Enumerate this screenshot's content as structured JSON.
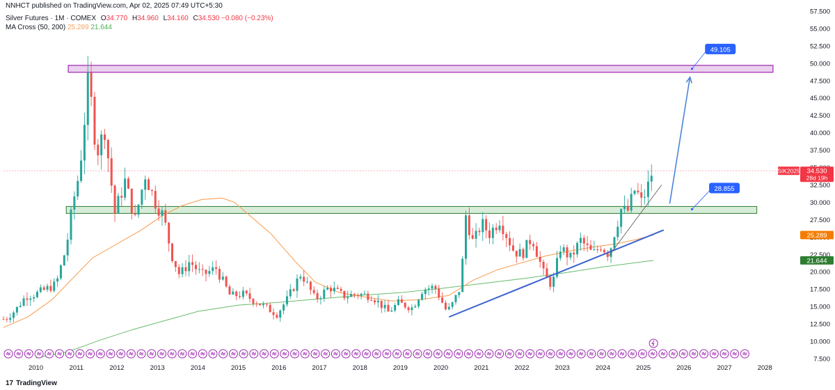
{
  "header": {
    "published": "NNHCT published on TradingView.com, Apr 02, 2025 07:49 UTC+5:30",
    "symbol": "Silver Futures · 1M · COMEX",
    "ohlc": {
      "o_label": "O",
      "o": "34.770",
      "h_label": "H",
      "h": "34.960",
      "l_label": "L",
      "l": "34.160",
      "c_label": "C",
      "c": "34.530",
      "change": "−0.080 (−0.23%)"
    },
    "ma_label": "MA Cross (50, 200)",
    "ma50_value": "25.289",
    "ma200_value": "21.644"
  },
  "footer": {
    "logo_mark": "17",
    "logo_text": "TradingView"
  },
  "chart_data": {
    "type": "candlestick",
    "title": "",
    "x_ticks": [
      "2010",
      "2011",
      "2012",
      "2013",
      "2014",
      "2015",
      "2016",
      "2017",
      "2018",
      "2019",
      "2020",
      "2021",
      "2022",
      "2023",
      "2024",
      "2025",
      "2026",
      "2027",
      "2028"
    ],
    "y_ticks": [
      "7.500",
      "10.000",
      "12.500",
      "15.000",
      "17.500",
      "20.000",
      "22.500",
      "25.000",
      "27.500",
      "30.000",
      "32.500",
      "35.000",
      "37.500",
      "40.000",
      "42.500",
      "45.000",
      "47.500",
      "50.000",
      "52.500",
      "55.000",
      "57.500"
    ],
    "ylim": [
      7.5,
      58.6
    ],
    "xlim": [
      2009.2,
      2028.7
    ],
    "close_series": [
      [
        2009.25,
        13.2
      ],
      [
        2009.5,
        14.5
      ],
      [
        2009.75,
        16.5
      ],
      [
        2010.0,
        16.8
      ],
      [
        2010.25,
        17.5
      ],
      [
        2010.5,
        18.2
      ],
      [
        2010.75,
        23.5
      ],
      [
        2010.92,
        30.0
      ],
      [
        2011.08,
        34.5
      ],
      [
        2011.3,
        48.0
      ],
      [
        2011.5,
        37.0
      ],
      [
        2011.7,
        40.5
      ],
      [
        2011.95,
        28.5
      ],
      [
        2012.2,
        33.0
      ],
      [
        2012.45,
        27.5
      ],
      [
        2012.7,
        34.0
      ],
      [
        2012.95,
        30.0
      ],
      [
        2013.15,
        28.0
      ],
      [
        2013.35,
        22.5
      ],
      [
        2013.55,
        19.5
      ],
      [
        2013.8,
        21.5
      ],
      [
        2014.1,
        19.5
      ],
      [
        2014.45,
        20.5
      ],
      [
        2014.8,
        16.5
      ],
      [
        2015.1,
        16.8
      ],
      [
        2015.5,
        15.5
      ],
      [
        2015.95,
        13.9
      ],
      [
        2016.2,
        16.0
      ],
      [
        2016.55,
        19.8
      ],
      [
        2016.9,
        16.0
      ],
      [
        2017.25,
        17.8
      ],
      [
        2017.6,
        16.5
      ],
      [
        2017.95,
        16.8
      ],
      [
        2018.3,
        16.5
      ],
      [
        2018.7,
        14.2
      ],
      [
        2018.95,
        15.5
      ],
      [
        2019.3,
        14.8
      ],
      [
        2019.55,
        17.5
      ],
      [
        2019.85,
        17.8
      ],
      [
        2020.15,
        14.2
      ],
      [
        2020.3,
        15.5
      ],
      [
        2020.5,
        18.0
      ],
      [
        2020.6,
        28.5
      ],
      [
        2020.8,
        24.0
      ],
      [
        2021.0,
        27.0
      ],
      [
        2021.2,
        25.5
      ],
      [
        2021.45,
        27.5
      ],
      [
        2021.8,
        23.0
      ],
      [
        2022.0,
        22.5
      ],
      [
        2022.25,
        25.0
      ],
      [
        2022.55,
        19.5
      ],
      [
        2022.75,
        18.0
      ],
      [
        2022.95,
        23.5
      ],
      [
        2023.2,
        22.0
      ],
      [
        2023.45,
        24.5
      ],
      [
        2023.75,
        22.5
      ],
      [
        2023.95,
        23.8
      ],
      [
        2024.15,
        22.5
      ],
      [
        2024.3,
        26.0
      ],
      [
        2024.45,
        29.0
      ],
      [
        2024.6,
        28.5
      ],
      [
        2024.8,
        32.0
      ],
      [
        2024.95,
        30.0
      ],
      [
        2025.1,
        32.0
      ],
      [
        2025.22,
        34.5
      ]
    ],
    "ma50_series": [
      [
        2009.2,
        12.0
      ],
      [
        2009.8,
        13.5
      ],
      [
        2010.4,
        16.0
      ],
      [
        2010.9,
        19.0
      ],
      [
        2011.4,
        22.0
      ],
      [
        2012.0,
        24.0
      ],
      [
        2012.6,
        26.0
      ],
      [
        2013.1,
        28.0
      ],
      [
        2013.6,
        29.5
      ],
      [
        2014.1,
        30.4
      ],
      [
        2014.6,
        30.6
      ],
      [
        2014.9,
        30.0
      ],
      [
        2015.3,
        28.0
      ],
      [
        2015.8,
        25.5
      ],
      [
        2016.4,
        21.5
      ],
      [
        2016.9,
        18.5
      ],
      [
        2017.5,
        17.0
      ],
      [
        2018.2,
        16.3
      ],
      [
        2018.8,
        15.8
      ],
      [
        2019.5,
        16.0
      ],
      [
        2020.2,
        16.6
      ],
      [
        2020.8,
        18.8
      ],
      [
        2021.4,
        20.3
      ],
      [
        2022.0,
        21.3
      ],
      [
        2022.6,
        22.3
      ],
      [
        2023.2,
        23.0
      ],
      [
        2023.8,
        23.6
      ],
      [
        2024.3,
        24.0
      ],
      [
        2024.8,
        24.6
      ],
      [
        2025.25,
        25.289
      ]
    ],
    "ma200_series": [
      [
        2010.0,
        7.6
      ],
      [
        2010.8,
        8.5
      ],
      [
        2011.6,
        10.2
      ],
      [
        2012.4,
        11.7
      ],
      [
        2013.2,
        13.0
      ],
      [
        2014.0,
        14.3
      ],
      [
        2015.0,
        15.2
      ],
      [
        2016.0,
        15.6
      ],
      [
        2017.0,
        16.1
      ],
      [
        2018.0,
        16.6
      ],
      [
        2019.0,
        17.0
      ],
      [
        2020.0,
        17.6
      ],
      [
        2021.0,
        18.3
      ],
      [
        2022.0,
        19.0
      ],
      [
        2023.0,
        19.8
      ],
      [
        2024.0,
        20.7
      ],
      [
        2025.25,
        21.644
      ]
    ],
    "resistance_zone": {
      "y_low": 48.7,
      "y_high": 49.7,
      "x_start": 2010.8,
      "x_end": 2028.2
    },
    "support_zone": {
      "y_low": 28.4,
      "y_high": 29.4,
      "x_start": 2010.75,
      "x_end": 2027.8
    },
    "trendline_main": {
      "x1": 2020.2,
      "y1": 13.5,
      "x2": 2025.5,
      "y2": 26.0
    },
    "trendline_short": {
      "x1": 2024.15,
      "y1": 22.3,
      "x2": 2025.45,
      "y2": 32.5
    },
    "projection_arrow": {
      "x1": 2025.65,
      "y1": 29.8,
      "x2": 2026.15,
      "y2": 48.0
    },
    "label_49105": {
      "text": "49.105",
      "x_data": 2026.2,
      "y_data": 49.2,
      "x_box": 2026.9,
      "y_box": 52.0
    },
    "label_28855": {
      "text": "28.855",
      "x_data": 2026.2,
      "y_data": 29.0,
      "x_box": 2027.0,
      "y_box": 32.0
    },
    "current_price_line_y": 34.53,
    "price_tags": [
      {
        "text": "SIK2025",
        "value_text": "34.530",
        "sub": "28d 19h",
        "color": "#f23645",
        "y": 34.53
      },
      {
        "text": "",
        "value_text": "25.289",
        "sub": "",
        "color": "#f57c00",
        "y": 25.289
      },
      {
        "text": "",
        "value_text": "21.644",
        "sub": "",
        "color": "#2e7d32",
        "y": 21.644
      }
    ],
    "bull_color": "#26a69a",
    "bear_color": "#ef5350",
    "ma50_color": "#f7a35c",
    "ma200_color": "#66bb6a",
    "zone_purple_fill": "#e1bee7",
    "zone_purple_stroke": "#9c27b0",
    "zone_green_fill": "#c8e6c9",
    "zone_green_stroke": "#2e7d32",
    "trend_color": "#3a62d0",
    "arrow_color": "#4a84d8",
    "label_box_color": "#2962ff"
  }
}
